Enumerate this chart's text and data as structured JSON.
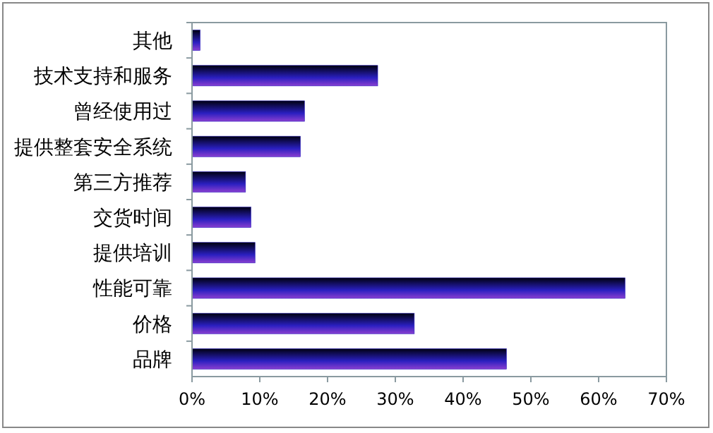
{
  "chart_data": {
    "type": "bar",
    "orientation": "horizontal",
    "categories": [
      "其他",
      "技术支持和服务",
      "曾经使用过",
      "提供整套安全系统",
      "第三方推荐",
      "交货时间",
      "提供培训",
      "性能可靠",
      "价格",
      "品牌"
    ],
    "values": [
      1.2,
      27.4,
      16.6,
      16.0,
      7.9,
      8.7,
      9.3,
      63.9,
      32.8,
      46.4
    ],
    "color": "#2a1fc0",
    "xlim": [
      0,
      70
    ],
    "xticks": [
      {
        "value": 0,
        "label": "0%"
      },
      {
        "value": 10,
        "label": "10%"
      },
      {
        "value": 20,
        "label": "20%"
      },
      {
        "value": 30,
        "label": "30%"
      },
      {
        "value": 40,
        "label": "40%"
      },
      {
        "value": 50,
        "label": "50%"
      },
      {
        "value": 60,
        "label": "60%"
      },
      {
        "value": 70,
        "label": "70%"
      }
    ],
    "grid": false
  }
}
